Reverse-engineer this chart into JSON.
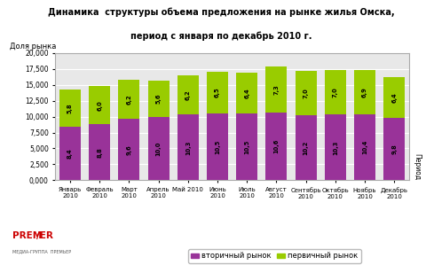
{
  "title_line1": "Динамика  структуры объема предложения на рынке жилья Омска,",
  "title_line2": "период с января по декабрь 2010 г.",
  "ylabel": "Доля рынка",
  "xlabel": "Период",
  "categories": [
    "Январь\n2010",
    "Февраль\n2010",
    "Март\n2010",
    "Апрель\n2010",
    "Май 2010",
    "Июнь\n2010",
    "Июль\n2010",
    "Август\n2010",
    "Сентябрь\n2010",
    "Октябрь\n2010",
    "Ноябрь\n2010",
    "Декабрь\n2010"
  ],
  "secondary": [
    8400,
    8800,
    9600,
    10000,
    10300,
    10500,
    10500,
    10600,
    10200,
    10300,
    10400,
    9800
  ],
  "primary": [
    5800,
    6000,
    6200,
    5600,
    6200,
    6500,
    6400,
    7300,
    7000,
    7000,
    6900,
    6400
  ],
  "secondary_labels": [
    "8,4",
    "8,8",
    "9,6",
    "10,0",
    "10,3",
    "10,5",
    "10,5",
    "10,6",
    "10,2",
    "10,3",
    "10,4",
    "9,8"
  ],
  "primary_labels": [
    "5,8",
    "6,0",
    "6,2",
    "5,6",
    "6,2",
    "6,5",
    "6,4",
    "7,3",
    "7,0",
    "7,0",
    "6,9",
    "6,4"
  ],
  "secondary_color": "#993399",
  "primary_color": "#99cc00",
  "ylim": [
    0,
    20000
  ],
  "ytick_vals": [
    0,
    2500,
    5000,
    7500,
    10000,
    12500,
    15000,
    17500,
    20000
  ],
  "ytick_labels": [
    "0,000",
    "2,500",
    "5,000",
    "7,500",
    "10,000",
    "12,500",
    "15,000",
    "17,500",
    "20,000"
  ],
  "legend_secondary": "вторичный рынок",
  "legend_primary": "первичный рынок",
  "background_color": "#ffffff",
  "plot_bg_color": "#e8e8e8",
  "grid_color": "#ffffff",
  "bar_width": 0.72
}
